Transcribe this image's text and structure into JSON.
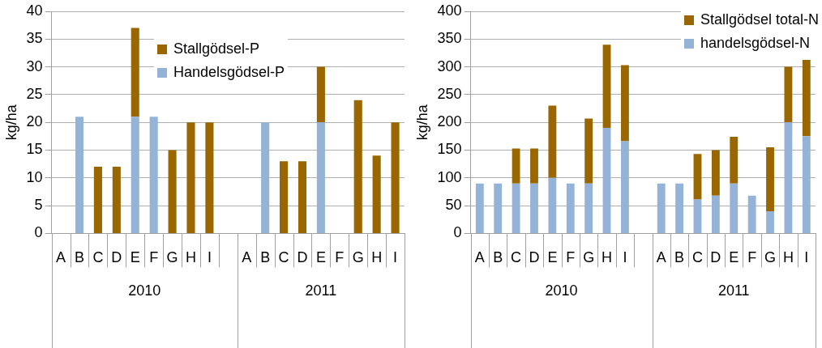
{
  "chart_data": [
    {
      "type": "bar",
      "stacked": true,
      "ylabel": "kg/ha",
      "categories": [
        "A",
        "B",
        "C",
        "D",
        "E",
        "F",
        "G",
        "H",
        "I",
        null,
        "A",
        "B",
        "C",
        "D",
        "E",
        "F",
        "G",
        "H",
        "I"
      ],
      "ylim": [
        0,
        40
      ],
      "yticks": [
        0,
        5,
        10,
        15,
        20,
        25,
        30,
        35,
        40
      ],
      "grid": "y",
      "legend": "top",
      "annotations": [
        "2010",
        "2011"
      ],
      "series": [
        {
          "name": "Handelsgödsel-P",
          "color": "#95b3d7",
          "values": [
            null,
            21,
            null,
            null,
            21,
            21,
            null,
            null,
            null,
            null,
            null,
            20,
            null,
            null,
            20,
            null,
            null,
            null,
            null
          ]
        },
        {
          "name": "Stallgödsel-P",
          "color": "#996600",
          "values": [
            null,
            null,
            12,
            12,
            16,
            null,
            15,
            20,
            20,
            null,
            null,
            null,
            13,
            13,
            10,
            null,
            24,
            14,
            20
          ]
        }
      ]
    },
    {
      "type": "bar",
      "stacked": true,
      "ylabel": "kg/ha",
      "categories": [
        "A",
        "B",
        "C",
        "D",
        "E",
        "F",
        "G",
        "H",
        "I",
        null,
        "A",
        "B",
        "C",
        "D",
        "E",
        "F",
        "G",
        "H",
        "I"
      ],
      "ylim": [
        0,
        400
      ],
      "yticks": [
        0,
        50,
        100,
        150,
        200,
        250,
        300,
        350,
        400
      ],
      "grid": "y",
      "legend": "top right",
      "annotations": [
        "2010",
        "2011"
      ],
      "series": [
        {
          "name": "handelsgödsel-N",
          "color": "#95b3d7",
          "values": [
            90,
            90,
            90,
            90,
            100,
            90,
            90,
            190,
            166,
            null,
            90,
            90,
            61,
            68,
            90,
            68,
            40,
            200,
            175
          ]
        },
        {
          "name": "Stallgödsel total-N",
          "color": "#996600",
          "values": [
            null,
            null,
            63,
            63,
            130,
            null,
            117,
            150,
            137,
            null,
            null,
            null,
            82,
            82,
            84,
            null,
            115,
            100,
            140
          ]
        }
      ]
    }
  ]
}
